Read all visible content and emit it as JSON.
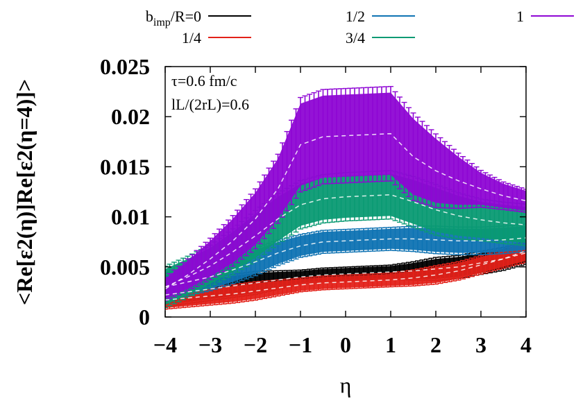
{
  "chart_data": {
    "type": "line",
    "title": "",
    "xlabel": "η",
    "ylabel": "<Re[ε2(η)]Re[ε2(η=4)]>",
    "xlim": [
      -4,
      4
    ],
    "ylim": [
      0,
      0.025
    ],
    "x_ticks": [
      "−4",
      "−3",
      "−2",
      "−1",
      "0",
      "1",
      "2",
      "3",
      "4"
    ],
    "y_ticks": [
      "0",
      "0.005",
      "0.01",
      "0.015",
      "0.02",
      "0.025"
    ],
    "annotations": [
      "τ=0.6 fm/c",
      "lL/(2rL)=0.6"
    ],
    "legend_position": "top",
    "x": [
      -4,
      -3.5,
      -3,
      -2.5,
      -2,
      -1.5,
      -1,
      -0.5,
      0,
      0.5,
      1,
      1.5,
      2,
      2.5,
      3,
      3.5,
      4
    ],
    "series": [
      {
        "name": "bimp/R=0",
        "color": "#000000",
        "values": [
          0.0022,
          0.0025,
          0.0028,
          0.0031,
          0.0034,
          0.0037,
          0.004,
          0.0042,
          0.0043,
          0.0044,
          0.0045,
          0.0046,
          0.0048,
          0.005,
          0.0054,
          0.0058,
          0.0064
        ],
        "errors": [
          0.001,
          0.001,
          0.001,
          0.001,
          0.001,
          0.0008,
          0.0006,
          0.0006,
          0.0006,
          0.0006,
          0.0006,
          0.0008,
          0.001,
          0.001,
          0.001,
          0.001,
          0.001
        ]
      },
      {
        "name": "1/4",
        "color": "#e32119",
        "values": [
          0.0017,
          0.0019,
          0.0021,
          0.0023,
          0.0026,
          0.0029,
          0.0032,
          0.0034,
          0.0035,
          0.0036,
          0.0037,
          0.0039,
          0.0042,
          0.0046,
          0.0052,
          0.0058,
          0.0066
        ],
        "errors": [
          0.0008,
          0.0008,
          0.0008,
          0.0008,
          0.0008,
          0.0007,
          0.0006,
          0.0006,
          0.0006,
          0.0006,
          0.0006,
          0.0007,
          0.0008,
          0.0008,
          0.0008,
          0.0008,
          0.001
        ]
      },
      {
        "name": "1/2",
        "color": "#0f73b3",
        "values": [
          0.003,
          0.0035,
          0.004,
          0.0047,
          0.0055,
          0.0064,
          0.0071,
          0.0075,
          0.0076,
          0.0077,
          0.0078,
          0.0078,
          0.0077,
          0.0076,
          0.0076,
          0.0077,
          0.0079
        ],
        "errors": [
          0.0012,
          0.0012,
          0.0012,
          0.0012,
          0.0012,
          0.0011,
          0.001,
          0.001,
          0.001,
          0.001,
          0.001,
          0.0011,
          0.0012,
          0.0012,
          0.0012,
          0.0012,
          0.0012
        ]
      },
      {
        "name": "3/4",
        "color": "#0a9a73",
        "values": [
          0.003,
          0.004,
          0.0051,
          0.0065,
          0.0081,
          0.0098,
          0.0112,
          0.0118,
          0.012,
          0.0121,
          0.0122,
          0.0115,
          0.0107,
          0.0101,
          0.0097,
          0.0094,
          0.0092
        ],
        "errors": [
          0.0018,
          0.0018,
          0.0018,
          0.002,
          0.0022,
          0.0022,
          0.0021,
          0.0021,
          0.0021,
          0.0021,
          0.0021,
          0.0022,
          0.0022,
          0.002,
          0.0018,
          0.0018,
          0.0018
        ]
      },
      {
        "name": "1",
        "color": "#8e06d4",
        "values": [
          0.0028,
          0.0042,
          0.0058,
          0.0076,
          0.0098,
          0.0128,
          0.0172,
          0.018,
          0.0181,
          0.0182,
          0.0183,
          0.016,
          0.0146,
          0.0136,
          0.0128,
          0.0121,
          0.0116
        ],
        "errors": [
          0.001,
          0.0014,
          0.0018,
          0.0022,
          0.0026,
          0.003,
          0.0041,
          0.0041,
          0.0041,
          0.0041,
          0.0041,
          0.0038,
          0.0032,
          0.0024,
          0.0016,
          0.0012,
          0.001
        ]
      }
    ]
  }
}
